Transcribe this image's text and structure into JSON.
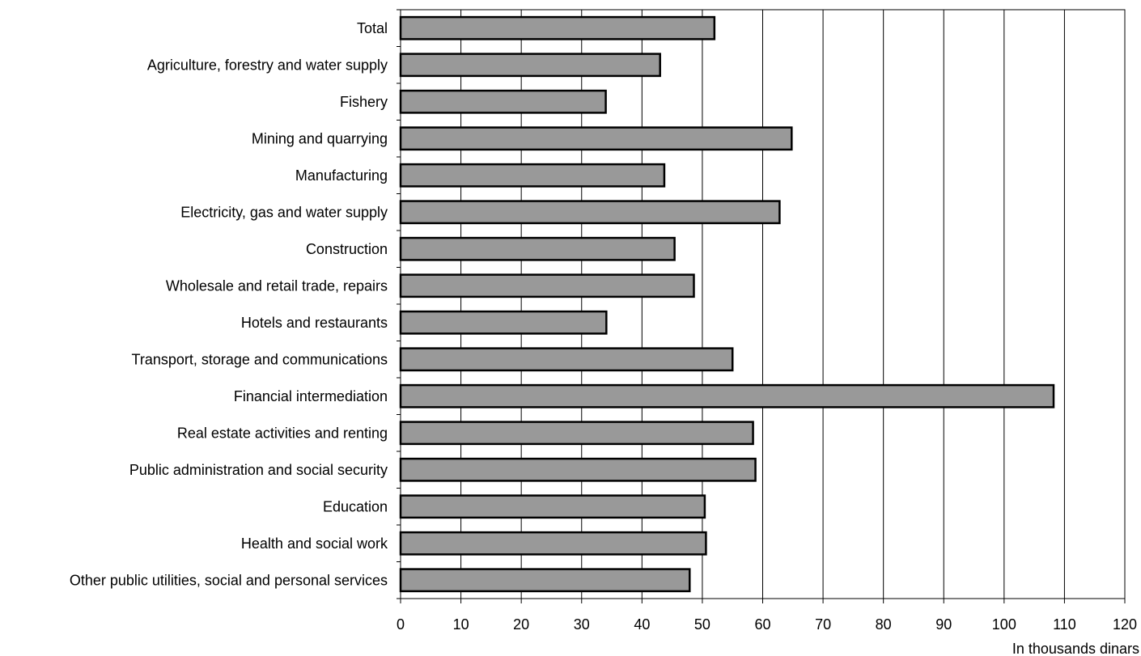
{
  "chart_data": {
    "type": "bar",
    "orientation": "horizontal",
    "categories": [
      "Total",
      "Agriculture, forestry and water supply",
      "Fishery",
      "Mining and quarrying",
      "Manufacturing",
      "Electricity, gas and water supply",
      "Construction",
      "Wholesale and retail trade, repairs",
      "Hotels and restaurants",
      "Transport, storage and communications",
      "Financial intermediation",
      "Real estate activities and renting",
      "Public administration and social security",
      "Education",
      "Health and social work",
      "Other public utilities, social and personal services"
    ],
    "values": [
      52,
      43,
      34,
      64.8,
      43.7,
      62.8,
      45.4,
      48.6,
      34.1,
      55,
      108.2,
      58.4,
      58.8,
      50.4,
      50.6,
      47.9
    ],
    "xlabel": "In thousands dinars",
    "ylabel": "",
    "title": "",
    "xlim": [
      0,
      120
    ],
    "xticks": [
      "0",
      "10",
      "20",
      "30",
      "40",
      "50",
      "60",
      "70",
      "80",
      "90",
      "100",
      "110",
      "120"
    ],
    "grid": "vertical",
    "bar_color": "#999999",
    "edge_color": "#000000"
  }
}
